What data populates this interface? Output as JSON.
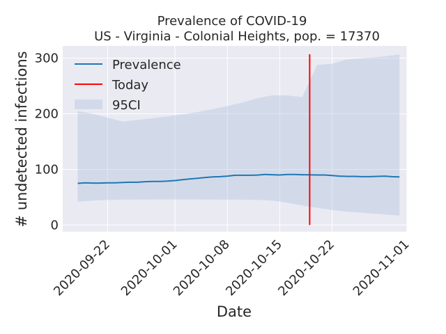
{
  "chart_data": {
    "type": "line",
    "title": "Prevalence of COVID-19",
    "subtitle": "US - Virginia - Colonial Heights, pop. = 17370",
    "xlabel": "Date",
    "ylabel": "# undetected infections",
    "xlim": [
      "2020-09-16",
      "2020-11-01"
    ],
    "ylim": [
      -12,
      322
    ],
    "x_ticks": [
      "2020-09-22",
      "2020-10-01",
      "2020-10-08",
      "2020-10-15",
      "2020-10-22",
      "2020-11-01"
    ],
    "y_ticks": [
      0,
      100,
      200,
      300
    ],
    "grid": true,
    "legend_position": "top-left",
    "today": "2020-10-19",
    "series": [
      {
        "name": "Prevalence",
        "color": "#1f77b4",
        "x": [
          "2020-09-18",
          "2020-09-19",
          "2020-09-20",
          "2020-09-21",
          "2020-09-22",
          "2020-09-23",
          "2020-09-24",
          "2020-09-25",
          "2020-09-26",
          "2020-09-27",
          "2020-09-28",
          "2020-09-29",
          "2020-09-30",
          "2020-10-01",
          "2020-10-02",
          "2020-10-03",
          "2020-10-04",
          "2020-10-05",
          "2020-10-06",
          "2020-10-07",
          "2020-10-08",
          "2020-10-09",
          "2020-10-10",
          "2020-10-11",
          "2020-10-12",
          "2020-10-13",
          "2020-10-14",
          "2020-10-15",
          "2020-10-16",
          "2020-10-17",
          "2020-10-18",
          "2020-10-19",
          "2020-10-20",
          "2020-10-21",
          "2020-10-22",
          "2020-10-23",
          "2020-10-24",
          "2020-10-25",
          "2020-10-26",
          "2020-10-27",
          "2020-10-28",
          "2020-10-29",
          "2020-10-30",
          "2020-10-31"
        ],
        "values": [
          75,
          76,
          75.5,
          75.5,
          76,
          76,
          76.5,
          77,
          77,
          78,
          78.5,
          78.5,
          79,
          80,
          81.5,
          83,
          84,
          85.5,
          86.5,
          87,
          88,
          89.5,
          89.5,
          89.5,
          89.8,
          91,
          90.5,
          90,
          91,
          91,
          90.5,
          90.2,
          90,
          90,
          89,
          88,
          87.5,
          87.5,
          87,
          87,
          87.5,
          88,
          87,
          86.5
        ]
      },
      {
        "name": "95CI",
        "type": "area",
        "color": "#b0c4de",
        "x": [
          "2020-09-18",
          "2020-09-20",
          "2020-09-22",
          "2020-09-24",
          "2020-09-26",
          "2020-09-28",
          "2020-10-01",
          "2020-10-04",
          "2020-10-07",
          "2020-10-10",
          "2020-10-12",
          "2020-10-14",
          "2020-10-16",
          "2020-10-18",
          "2020-10-20",
          "2020-10-22",
          "2020-10-24",
          "2020-10-26",
          "2020-10-28",
          "2020-10-30",
          "2020-10-31"
        ],
        "upper": [
          205,
          200,
          193,
          186,
          189,
          192,
          197,
          203,
          211,
          220,
          228,
          233,
          233,
          230,
          288,
          290,
          298,
          300,
          302,
          305,
          307
        ],
        "lower": [
          42,
          44,
          45,
          45.5,
          45.5,
          46,
          46,
          46,
          45.5,
          45.5,
          45,
          44,
          40,
          35,
          31,
          27,
          24,
          22,
          20,
          18,
          17
        ]
      }
    ],
    "annotations": [
      {
        "name": "Today",
        "type": "vline",
        "x": "2020-10-19",
        "color": "#ff0000"
      }
    ]
  }
}
